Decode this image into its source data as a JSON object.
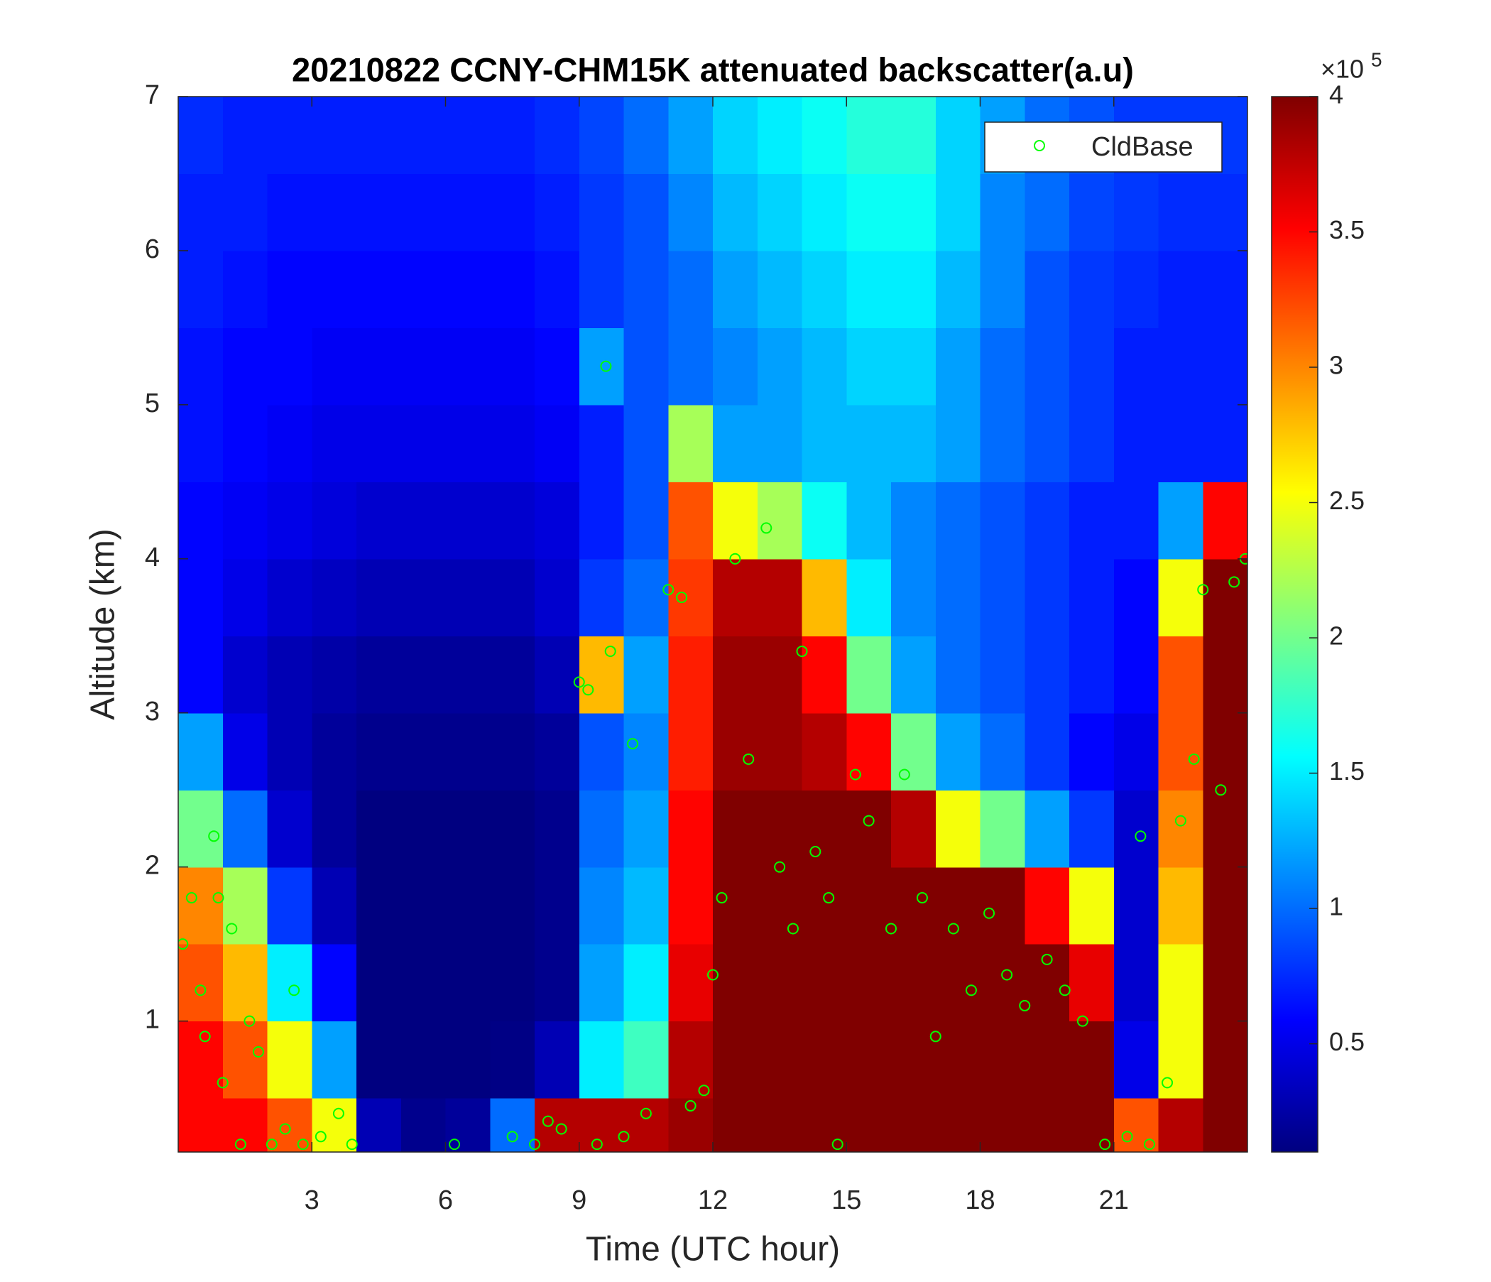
{
  "chart_data": {
    "type": "heatmap",
    "title": "20210822 CCNY-CHM15K attenuated backscatter(a.u)",
    "x_label": "Time (UTC hour)",
    "y_label": "Altitude (km)",
    "xlim": [
      0,
      24
    ],
    "ylim": [
      0.15,
      7
    ],
    "xticks": [
      3,
      6,
      9,
      12,
      15,
      18,
      21
    ],
    "yticks": [
      1,
      2,
      3,
      4,
      5,
      6,
      7
    ],
    "x_bins": [
      0,
      1,
      2,
      3,
      4,
      5,
      6,
      7,
      8,
      9,
      10,
      11,
      12,
      13,
      14,
      15,
      16,
      17,
      18,
      19,
      20,
      21,
      22,
      23,
      24
    ],
    "y_bins": [
      0.15,
      0.5,
      1,
      1.5,
      2,
      2.5,
      3,
      3.5,
      4,
      4.5,
      5,
      5.5,
      6,
      6.5,
      7
    ],
    "z": [
      [
        3.5,
        3.5,
        3.2,
        2.5,
        0.3,
        0.15,
        0.2,
        1.0,
        3.8,
        3.8,
        3.8,
        3.9,
        4,
        4,
        4,
        4,
        4,
        4,
        4,
        4,
        4,
        3.2,
        3.8,
        4
      ],
      [
        3.5,
        3.2,
        2.5,
        1.2,
        0.1,
        0.1,
        0.1,
        0.12,
        0.3,
        1.5,
        1.8,
        3.8,
        4,
        4,
        4,
        4,
        4,
        4,
        4,
        4,
        4,
        0.5,
        2.5,
        4
      ],
      [
        3.2,
        2.8,
        1.5,
        0.6,
        0.1,
        0.1,
        0.1,
        0.1,
        0.15,
        1.2,
        1.5,
        3.6,
        4,
        4,
        4,
        4,
        4,
        4,
        4,
        4,
        3.6,
        0.4,
        2.5,
        4
      ],
      [
        3.0,
        2.2,
        0.8,
        0.3,
        0.1,
        0.1,
        0.1,
        0.1,
        0.15,
        1.1,
        1.3,
        3.5,
        4,
        4,
        4,
        4,
        4,
        4,
        4,
        3.5,
        2.5,
        0.4,
        2.8,
        4
      ],
      [
        2.0,
        1.0,
        0.4,
        0.2,
        0.1,
        0.1,
        0.1,
        0.1,
        0.15,
        1.0,
        1.2,
        3.5,
        4,
        4,
        4,
        4,
        3.8,
        2.5,
        2.0,
        1.2,
        0.8,
        0.4,
        3.0,
        4
      ],
      [
        1.2,
        0.5,
        0.3,
        0.2,
        0.15,
        0.15,
        0.15,
        0.15,
        0.2,
        0.9,
        1.1,
        3.4,
        3.9,
        3.9,
        3.8,
        3.5,
        2.0,
        1.2,
        1.0,
        0.8,
        0.6,
        0.5,
        3.2,
        4
      ],
      [
        0.6,
        0.4,
        0.3,
        0.25,
        0.2,
        0.2,
        0.2,
        0.2,
        0.3,
        2.8,
        1.2,
        3.4,
        3.9,
        3.9,
        3.5,
        2.0,
        1.2,
        1.0,
        0.9,
        0.8,
        0.7,
        0.6,
        3.2,
        4
      ],
      [
        0.6,
        0.5,
        0.4,
        0.35,
        0.3,
        0.3,
        0.3,
        0.3,
        0.4,
        0.8,
        1.0,
        3.3,
        3.8,
        3.8,
        2.8,
        1.5,
        1.1,
        1.0,
        0.9,
        0.8,
        0.7,
        0.6,
        2.5,
        4
      ],
      [
        0.6,
        0.55,
        0.5,
        0.45,
        0.4,
        0.4,
        0.4,
        0.4,
        0.45,
        0.7,
        0.9,
        3.2,
        2.5,
        2.2,
        1.6,
        1.3,
        1.1,
        1.0,
        0.9,
        0.8,
        0.7,
        0.7,
        1.2,
        3.5
      ],
      [
        0.65,
        0.6,
        0.55,
        0.5,
        0.5,
        0.5,
        0.5,
        0.5,
        0.55,
        0.7,
        0.9,
        2.2,
        1.2,
        1.2,
        1.3,
        1.3,
        1.3,
        1.2,
        1.0,
        0.9,
        0.8,
        0.7,
        0.7,
        0.7
      ],
      [
        0.65,
        0.6,
        0.6,
        0.55,
        0.55,
        0.55,
        0.55,
        0.55,
        0.6,
        1.2,
        0.9,
        1.0,
        1.1,
        1.2,
        1.3,
        1.4,
        1.4,
        1.2,
        1.0,
        0.9,
        0.8,
        0.7,
        0.7,
        0.7
      ],
      [
        0.7,
        0.65,
        0.6,
        0.6,
        0.6,
        0.6,
        0.6,
        0.6,
        0.65,
        0.8,
        0.9,
        1.0,
        1.2,
        1.3,
        1.4,
        1.5,
        1.5,
        1.3,
        1.1,
        0.9,
        0.8,
        0.75,
        0.7,
        0.7
      ],
      [
        0.7,
        0.7,
        0.65,
        0.65,
        0.65,
        0.65,
        0.65,
        0.65,
        0.7,
        0.8,
        0.9,
        1.1,
        1.3,
        1.4,
        1.5,
        1.6,
        1.6,
        1.4,
        1.1,
        1.0,
        0.85,
        0.8,
        0.75,
        0.75
      ],
      [
        0.75,
        0.7,
        0.7,
        0.7,
        0.7,
        0.7,
        0.7,
        0.7,
        0.75,
        0.85,
        1.0,
        1.2,
        1.4,
        1.5,
        1.6,
        1.7,
        1.7,
        1.4,
        1.2,
        1.0,
        0.9,
        0.8,
        0.8,
        0.8
      ]
    ],
    "colormap": "jet",
    "clim": [
      0.1,
      4
    ],
    "colorbar_ticks": [
      0.5,
      1,
      1.5,
      2,
      2.5,
      3,
      3.5,
      4
    ],
    "colorbar_multiplier": "×10",
    "colorbar_exponent": "5",
    "legend": "northeast",
    "overlay": {
      "type": "scatter",
      "name": "CldBase",
      "color": "#00ff00",
      "x": [
        0.1,
        0.3,
        0.5,
        0.6,
        0.8,
        0.9,
        1.0,
        1.2,
        1.4,
        1.6,
        1.8,
        2.1,
        2.4,
        2.6,
        2.8,
        3.2,
        3.6,
        3.9,
        6.2,
        7.5,
        8.0,
        8.3,
        8.6,
        9.0,
        9.2,
        9.4,
        9.6,
        9.7,
        10.0,
        10.2,
        10.5,
        11.0,
        11.3,
        11.5,
        11.8,
        12.0,
        12.2,
        12.5,
        12.8,
        13.2,
        13.5,
        13.8,
        14.0,
        14.3,
        14.6,
        14.8,
        15.2,
        15.5,
        16.0,
        16.3,
        16.7,
        17.0,
        17.4,
        17.8,
        18.2,
        18.6,
        19.0,
        19.5,
        19.9,
        20.3,
        20.8,
        21.3,
        21.6,
        21.8,
        22.2,
        22.5,
        22.8,
        23.0,
        23.4,
        23.7,
        23.95
      ],
      "y": [
        1.5,
        1.8,
        1.2,
        0.9,
        2.2,
        1.8,
        0.6,
        1.6,
        0.2,
        1.0,
        0.8,
        0.2,
        0.3,
        1.2,
        0.2,
        0.25,
        0.4,
        0.2,
        0.2,
        0.25,
        0.2,
        0.35,
        0.3,
        3.2,
        3.15,
        0.2,
        5.25,
        3.4,
        0.25,
        2.8,
        0.4,
        3.8,
        3.75,
        0.45,
        0.55,
        1.3,
        1.8,
        4.0,
        2.7,
        4.2,
        2.0,
        1.6,
        3.4,
        2.1,
        1.8,
        0.2,
        2.6,
        2.3,
        1.6,
        2.6,
        1.8,
        0.9,
        1.6,
        1.2,
        1.7,
        1.3,
        1.1,
        1.4,
        1.2,
        1.0,
        0.2,
        0.25,
        2.2,
        0.2,
        0.6,
        2.3,
        2.7,
        3.8,
        2.5,
        3.85,
        4.0
      ]
    }
  }
}
